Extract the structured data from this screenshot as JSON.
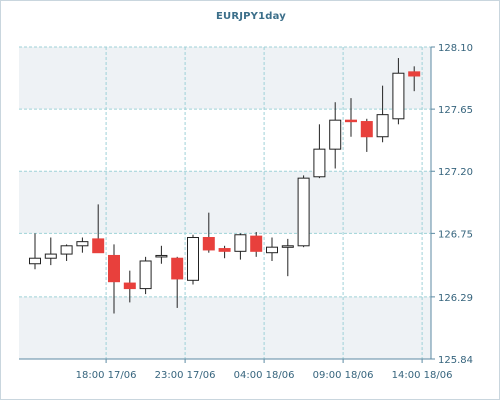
{
  "colors": {
    "bull_body": "#ffffff",
    "bear_body": "#e8403c",
    "candle_stroke": "#222222",
    "grid": "#9fd2d8",
    "axis": "#5c8aa3",
    "band": "#eef2f5",
    "tick_text": "#36647d"
  },
  "chart_data": {
    "type": "candlestick",
    "title": "EURJPY1day",
    "ylim": [
      125.84,
      128.1
    ],
    "y_ticks": [
      "125.84",
      "126.29",
      "126.75",
      "127.20",
      "127.65",
      "128.10"
    ],
    "x_ticks": [
      {
        "label": "18:00 17/06",
        "index": 4.5
      },
      {
        "label": "23:00 17/06",
        "index": 9.5
      },
      {
        "label": "04:00 18/06",
        "index": 14.5
      },
      {
        "label": "09:00 18/06",
        "index": 19.5
      },
      {
        "label": "14:00 18/06",
        "index": 24.5
      }
    ],
    "candles": [
      {
        "o": 126.53,
        "h": 126.75,
        "l": 126.49,
        "c": 126.57
      },
      {
        "o": 126.57,
        "h": 126.72,
        "l": 126.52,
        "c": 126.6
      },
      {
        "o": 126.6,
        "h": 126.67,
        "l": 126.55,
        "c": 126.66
      },
      {
        "o": 126.66,
        "h": 126.72,
        "l": 126.61,
        "c": 126.69
      },
      {
        "o": 126.71,
        "h": 126.96,
        "l": 126.61,
        "c": 126.61
      },
      {
        "o": 126.59,
        "h": 126.67,
        "l": 126.17,
        "c": 126.4
      },
      {
        "o": 126.39,
        "h": 126.48,
        "l": 126.25,
        "c": 126.35
      },
      {
        "o": 126.35,
        "h": 126.58,
        "l": 126.31,
        "c": 126.55
      },
      {
        "o": 126.58,
        "h": 126.66,
        "l": 126.53,
        "c": 126.59
      },
      {
        "o": 126.57,
        "h": 126.58,
        "l": 126.21,
        "c": 126.42
      },
      {
        "o": 126.41,
        "h": 126.74,
        "l": 126.38,
        "c": 126.72
      },
      {
        "o": 126.72,
        "h": 126.9,
        "l": 126.61,
        "c": 126.63
      },
      {
        "o": 126.64,
        "h": 126.66,
        "l": 126.57,
        "c": 126.62
      },
      {
        "o": 126.62,
        "h": 126.75,
        "l": 126.56,
        "c": 126.74
      },
      {
        "o": 126.73,
        "h": 126.76,
        "l": 126.58,
        "c": 126.62
      },
      {
        "o": 126.61,
        "h": 126.72,
        "l": 126.55,
        "c": 126.65
      },
      {
        "o": 126.65,
        "h": 126.71,
        "l": 126.44,
        "c": 126.66
      },
      {
        "o": 126.66,
        "h": 127.17,
        "l": 126.65,
        "c": 127.15
      },
      {
        "o": 127.16,
        "h": 127.54,
        "l": 127.15,
        "c": 127.36
      },
      {
        "o": 127.36,
        "h": 127.7,
        "l": 127.22,
        "c": 127.57
      },
      {
        "o": 127.57,
        "h": 127.73,
        "l": 127.45,
        "c": 127.56
      },
      {
        "o": 127.56,
        "h": 127.58,
        "l": 127.34,
        "c": 127.45
      },
      {
        "o": 127.45,
        "h": 127.82,
        "l": 127.41,
        "c": 127.61
      },
      {
        "o": 127.58,
        "h": 128.02,
        "l": 127.54,
        "c": 127.91
      },
      {
        "o": 127.92,
        "h": 127.96,
        "l": 127.78,
        "c": 127.89
      }
    ]
  }
}
